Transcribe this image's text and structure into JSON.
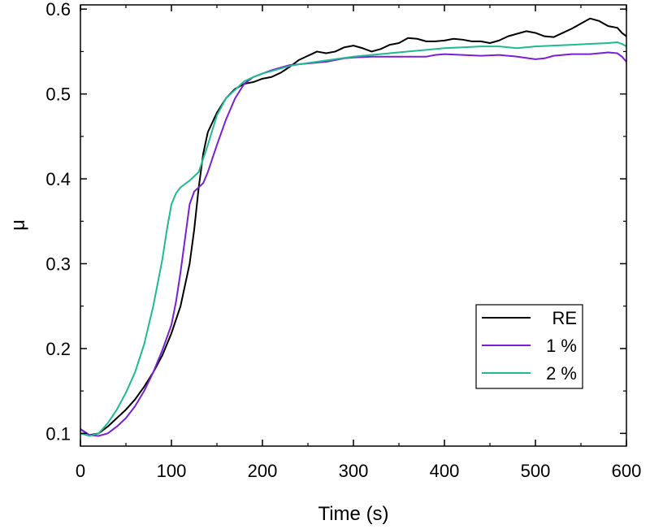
{
  "chart_data": {
    "type": "line",
    "title": "",
    "xlabel": "Time (s)",
    "ylabel": "μ",
    "xlim": [
      0,
      600
    ],
    "ylim": [
      0.085,
      0.605
    ],
    "xticks": [
      0,
      100,
      200,
      300,
      400,
      500,
      600
    ],
    "xtick_labels": [
      "0",
      "100",
      "200",
      "300",
      "400",
      "500",
      "600"
    ],
    "yticks": [
      0.1,
      0.2,
      0.3,
      0.4,
      0.5,
      0.6
    ],
    "ytick_labels": [
      "0.1",
      "0.2",
      "0.3",
      "0.4",
      "0.5",
      "0.6"
    ],
    "grid": false,
    "legend_position": "lower-right",
    "series": [
      {
        "name": "RE",
        "color": "#000000",
        "points": [
          [
            0,
            0.105
          ],
          [
            10,
            0.098
          ],
          [
            20,
            0.1
          ],
          [
            30,
            0.108
          ],
          [
            40,
            0.118
          ],
          [
            50,
            0.128
          ],
          [
            60,
            0.14
          ],
          [
            70,
            0.155
          ],
          [
            80,
            0.172
          ],
          [
            90,
            0.192
          ],
          [
            100,
            0.218
          ],
          [
            110,
            0.25
          ],
          [
            120,
            0.3
          ],
          [
            125,
            0.34
          ],
          [
            130,
            0.39
          ],
          [
            135,
            0.43
          ],
          [
            140,
            0.455
          ],
          [
            150,
            0.478
          ],
          [
            160,
            0.495
          ],
          [
            170,
            0.506
          ],
          [
            180,
            0.512
          ],
          [
            190,
            0.514
          ],
          [
            200,
            0.518
          ],
          [
            210,
            0.52
          ],
          [
            220,
            0.525
          ],
          [
            230,
            0.532
          ],
          [
            240,
            0.54
          ],
          [
            250,
            0.545
          ],
          [
            260,
            0.55
          ],
          [
            270,
            0.548
          ],
          [
            280,
            0.55
          ],
          [
            290,
            0.555
          ],
          [
            300,
            0.557
          ],
          [
            310,
            0.554
          ],
          [
            320,
            0.55
          ],
          [
            330,
            0.553
          ],
          [
            340,
            0.558
          ],
          [
            350,
            0.56
          ],
          [
            360,
            0.566
          ],
          [
            370,
            0.565
          ],
          [
            380,
            0.562
          ],
          [
            390,
            0.562
          ],
          [
            400,
            0.563
          ],
          [
            410,
            0.565
          ],
          [
            420,
            0.564
          ],
          [
            430,
            0.562
          ],
          [
            440,
            0.562
          ],
          [
            450,
            0.56
          ],
          [
            460,
            0.563
          ],
          [
            470,
            0.568
          ],
          [
            480,
            0.571
          ],
          [
            490,
            0.574
          ],
          [
            500,
            0.572
          ],
          [
            510,
            0.568
          ],
          [
            520,
            0.567
          ],
          [
            530,
            0.572
          ],
          [
            540,
            0.577
          ],
          [
            550,
            0.583
          ],
          [
            560,
            0.589
          ],
          [
            570,
            0.586
          ],
          [
            580,
            0.58
          ],
          [
            590,
            0.578
          ],
          [
            595,
            0.572
          ],
          [
            600,
            0.568
          ]
        ]
      },
      {
        "name": "1 %",
        "color": "#7b1fd6",
        "points": [
          [
            0,
            0.105
          ],
          [
            10,
            0.098
          ],
          [
            20,
            0.097
          ],
          [
            30,
            0.1
          ],
          [
            40,
            0.108
          ],
          [
            50,
            0.118
          ],
          [
            60,
            0.132
          ],
          [
            70,
            0.15
          ],
          [
            80,
            0.172
          ],
          [
            90,
            0.198
          ],
          [
            100,
            0.228
          ],
          [
            105,
            0.255
          ],
          [
            110,
            0.29
          ],
          [
            115,
            0.33
          ],
          [
            120,
            0.37
          ],
          [
            125,
            0.385
          ],
          [
            130,
            0.39
          ],
          [
            135,
            0.395
          ],
          [
            140,
            0.408
          ],
          [
            150,
            0.44
          ],
          [
            160,
            0.47
          ],
          [
            170,
            0.495
          ],
          [
            180,
            0.512
          ],
          [
            190,
            0.52
          ],
          [
            200,
            0.524
          ],
          [
            210,
            0.528
          ],
          [
            220,
            0.531
          ],
          [
            230,
            0.534
          ],
          [
            240,
            0.535
          ],
          [
            250,
            0.536
          ],
          [
            260,
            0.537
          ],
          [
            270,
            0.538
          ],
          [
            280,
            0.54
          ],
          [
            290,
            0.542
          ],
          [
            300,
            0.543
          ],
          [
            320,
            0.544
          ],
          [
            340,
            0.544
          ],
          [
            360,
            0.544
          ],
          [
            380,
            0.544
          ],
          [
            390,
            0.546
          ],
          [
            400,
            0.547
          ],
          [
            420,
            0.546
          ],
          [
            440,
            0.545
          ],
          [
            460,
            0.546
          ],
          [
            480,
            0.544
          ],
          [
            500,
            0.541
          ],
          [
            510,
            0.542
          ],
          [
            520,
            0.545
          ],
          [
            540,
            0.547
          ],
          [
            560,
            0.547
          ],
          [
            580,
            0.549
          ],
          [
            590,
            0.548
          ],
          [
            595,
            0.544
          ],
          [
            600,
            0.538
          ]
        ]
      },
      {
        "name": "2 %",
        "color": "#1fba8f",
        "points": [
          [
            0,
            0.1
          ],
          [
            10,
            0.097
          ],
          [
            20,
            0.1
          ],
          [
            30,
            0.112
          ],
          [
            40,
            0.128
          ],
          [
            50,
            0.148
          ],
          [
            60,
            0.172
          ],
          [
            70,
            0.205
          ],
          [
            80,
            0.25
          ],
          [
            90,
            0.305
          ],
          [
            95,
            0.34
          ],
          [
            100,
            0.37
          ],
          [
            105,
            0.383
          ],
          [
            110,
            0.39
          ],
          [
            120,
            0.398
          ],
          [
            130,
            0.408
          ],
          [
            140,
            0.44
          ],
          [
            150,
            0.475
          ],
          [
            160,
            0.495
          ],
          [
            170,
            0.505
          ],
          [
            180,
            0.515
          ],
          [
            190,
            0.52
          ],
          [
            200,
            0.524
          ],
          [
            210,
            0.527
          ],
          [
            220,
            0.53
          ],
          [
            230,
            0.533
          ],
          [
            240,
            0.535
          ],
          [
            260,
            0.538
          ],
          [
            280,
            0.541
          ],
          [
            300,
            0.544
          ],
          [
            320,
            0.546
          ],
          [
            340,
            0.548
          ],
          [
            360,
            0.55
          ],
          [
            380,
            0.552
          ],
          [
            400,
            0.554
          ],
          [
            420,
            0.555
          ],
          [
            440,
            0.556
          ],
          [
            460,
            0.556
          ],
          [
            480,
            0.554
          ],
          [
            500,
            0.556
          ],
          [
            520,
            0.557
          ],
          [
            540,
            0.558
          ],
          [
            560,
            0.559
          ],
          [
            580,
            0.56
          ],
          [
            590,
            0.561
          ],
          [
            595,
            0.559
          ],
          [
            600,
            0.556
          ]
        ]
      }
    ]
  }
}
